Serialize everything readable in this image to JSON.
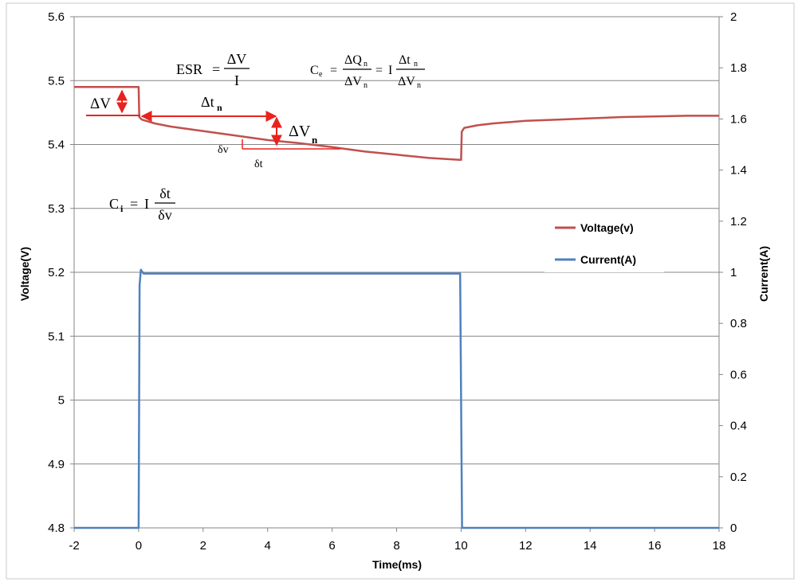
{
  "chart_data": {
    "type": "line",
    "xlabel": "Time(ms)",
    "ylabel": "Voltage(V)",
    "y2label": "Current(A)",
    "xlim": [
      -2,
      18
    ],
    "ylim": [
      4.8,
      5.6
    ],
    "y2lim": [
      0,
      2
    ],
    "xticks": [
      "-2",
      "0",
      "2",
      "4",
      "6",
      "8",
      "10",
      "12",
      "14",
      "16",
      "18"
    ],
    "yticks": [
      "4.8",
      "4.9",
      "5",
      "5.1",
      "5.2",
      "5.3",
      "5.4",
      "5.5",
      "5.6"
    ],
    "y2ticks": [
      "0",
      "0.2",
      "0.4",
      "0.6",
      "0.8",
      "1",
      "1.2",
      "1.4",
      "1.6",
      "1.8",
      "2"
    ],
    "grid": "horizontal",
    "legend_position": "right",
    "series": [
      {
        "name": "Voltage(v)",
        "axis": "left",
        "color": "#c0504d",
        "x": [
          -2,
          0,
          0.02,
          0.1,
          0.5,
          1,
          2,
          3,
          4,
          5,
          6,
          7,
          8,
          9,
          9.95,
          10.0,
          10.02,
          10.1,
          10.5,
          11,
          12,
          13,
          14,
          15,
          16,
          17,
          18
        ],
        "y": [
          5.49,
          5.49,
          5.443,
          5.439,
          5.433,
          5.428,
          5.421,
          5.414,
          5.407,
          5.402,
          5.396,
          5.389,
          5.384,
          5.379,
          5.376,
          5.376,
          5.42,
          5.426,
          5.43,
          5.433,
          5.437,
          5.439,
          5.441,
          5.443,
          5.444,
          5.445,
          5.445
        ]
      },
      {
        "name": "Current(A)",
        "axis": "right",
        "color": "#4f81bd",
        "x": [
          -2,
          0,
          0.03,
          0.07,
          0.15,
          0.4,
          1,
          5,
          9.9,
          9.97,
          10.03,
          10.1,
          18
        ],
        "y": [
          0,
          0,
          0.95,
          1.01,
          0.995,
          0.995,
          0.995,
          0.995,
          0.995,
          0.995,
          0,
          0,
          0
        ]
      }
    ]
  },
  "annotations": {
    "esr": {
      "lhs": "ESR",
      "eq": "=",
      "num": "ΔV",
      "den": "I"
    },
    "ce": {
      "lhs": "C",
      "lhs_sub": "e",
      "eq": "=",
      "num": "ΔQ",
      "num_sub": "n",
      "den": "ΔV",
      "den_sub": "n",
      "eq2": "=",
      "mid": "I",
      "num2": "Δt",
      "num2_sub": "n",
      "den2": "ΔV",
      "den2_sub": "n"
    },
    "ci": {
      "lhs": "C",
      "lhs_sub": "i",
      "eq": "=",
      "mid": "I",
      "num": "δt",
      "den": "δv"
    },
    "delta_v": "ΔV",
    "delta_tn": {
      "main": "Δt",
      "sub": "n"
    },
    "delta_vn": {
      "main": "ΔV",
      "sub": "n"
    },
    "small_dv": "δv",
    "small_dt": "δt"
  },
  "colors": {
    "voltage": "#c0504d",
    "current": "#4f81bd",
    "annotation_red": "#e8231f",
    "grid": "#868686"
  }
}
